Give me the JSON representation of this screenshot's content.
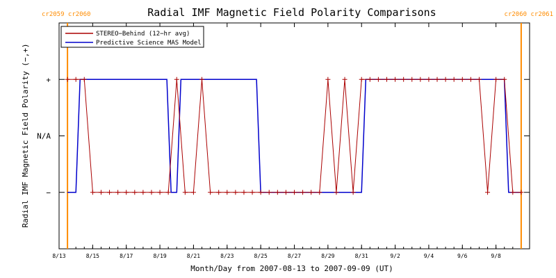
{
  "chart_data": {
    "type": "line",
    "title": "Radial IMF Magnetic Field Polarity Comparisons",
    "xlabel": "Month/Day from 2007-08-13 to 2007-09-09 (UT)",
    "ylabel": "Radial IMF Magnetic Field Polarity (−,+)",
    "xlim": [
      "2007-08-13",
      "2007-09-10"
    ],
    "ylim": [
      -2,
      2
    ],
    "x_tick_labels": [
      "8/13",
      "8/15",
      "8/17",
      "8/19",
      "8/21",
      "8/23",
      "8/25",
      "8/27",
      "8/29",
      "8/31",
      "9/2",
      "9/4",
      "9/6",
      "9/8"
    ],
    "x_tick_dates": [
      "2007-08-13",
      "2007-08-15",
      "2007-08-17",
      "2007-08-19",
      "2007-08-21",
      "2007-08-23",
      "2007-08-25",
      "2007-08-27",
      "2007-08-29",
      "2007-08-31",
      "2007-09-02",
      "2007-09-04",
      "2007-09-06",
      "2007-09-08"
    ],
    "y_tick_labels": [
      {
        "label": "+",
        "value": 1
      },
      {
        "label": "N/A",
        "value": 0
      },
      {
        "label": "−",
        "value": -1
      }
    ],
    "legend": {
      "position": "top-left",
      "entries": [
        {
          "label": "STEREO−Behind (12−hr avg)",
          "color": "#aa0000"
        },
        {
          "label": "Predictive Science MAS Model",
          "color": "#0000cc"
        }
      ]
    },
    "carrington_markers": [
      {
        "date": "2007-08-13 12:00",
        "label": "cr2059 cr2060",
        "side": "left"
      },
      {
        "date": "2007-09-09 12:00",
        "label": "cr2060 cr2061",
        "side": "right"
      }
    ],
    "series": [
      {
        "name": "STEREO−Behind (12−hr avg)",
        "color": "#aa0000",
        "markers": "plus",
        "x": [
          "2007-08-13 12:00",
          "2007-08-14 00:00",
          "2007-08-14 12:00",
          "2007-08-15 00:00",
          "2007-08-15 12:00",
          "2007-08-16 00:00",
          "2007-08-16 12:00",
          "2007-08-17 00:00",
          "2007-08-17 12:00",
          "2007-08-18 00:00",
          "2007-08-18 12:00",
          "2007-08-19 00:00",
          "2007-08-19 12:00",
          "2007-08-20 00:00",
          "2007-08-20 12:00",
          "2007-08-21 00:00",
          "2007-08-21 12:00",
          "2007-08-22 00:00",
          "2007-08-22 12:00",
          "2007-08-23 00:00",
          "2007-08-23 12:00",
          "2007-08-24 00:00",
          "2007-08-24 12:00",
          "2007-08-25 00:00",
          "2007-08-25 12:00",
          "2007-08-26 00:00",
          "2007-08-26 12:00",
          "2007-08-27 00:00",
          "2007-08-27 12:00",
          "2007-08-28 00:00",
          "2007-08-28 12:00",
          "2007-08-29 00:00",
          "2007-08-29 12:00",
          "2007-08-30 00:00",
          "2007-08-30 12:00",
          "2007-08-31 00:00",
          "2007-08-31 12:00",
          "2007-09-01 00:00",
          "2007-09-01 12:00",
          "2007-09-02 00:00",
          "2007-09-02 12:00",
          "2007-09-03 00:00",
          "2007-09-03 12:00",
          "2007-09-04 00:00",
          "2007-09-04 12:00",
          "2007-09-05 00:00",
          "2007-09-05 12:00",
          "2007-09-06 00:00",
          "2007-09-06 12:00",
          "2007-09-07 00:00",
          "2007-09-07 12:00",
          "2007-09-08 00:00",
          "2007-09-08 12:00",
          "2007-09-09 00:00",
          "2007-09-09 12:00"
        ],
        "y": [
          1,
          1,
          1,
          -1,
          -1,
          -1,
          -1,
          -1,
          -1,
          -1,
          -1,
          -1,
          -1,
          1,
          -1,
          -1,
          1,
          -1,
          -1,
          -1,
          -1,
          -1,
          -1,
          -1,
          -1,
          -1,
          -1,
          -1,
          -1,
          -1,
          -1,
          1,
          -1,
          1,
          -1,
          1,
          1,
          1,
          1,
          1,
          1,
          1,
          1,
          1,
          1,
          1,
          1,
          1,
          1,
          1,
          -1,
          1,
          1,
          -1,
          -1
        ]
      },
      {
        "name": "Predictive Science MAS Model",
        "color": "#0000cc",
        "markers": "none",
        "x": [
          "2007-08-13 12:00",
          "2007-08-14 00:00",
          "2007-08-14 06:00",
          "2007-08-19 10:00",
          "2007-08-19 16:00",
          "2007-08-20 00:00",
          "2007-08-20 06:00",
          "2007-08-24 18:00",
          "2007-08-25 00:00",
          "2007-08-31 00:00",
          "2007-08-31 06:00",
          "2007-09-08 12:00",
          "2007-09-08 18:00",
          "2007-09-09 12:00"
        ],
        "y": [
          -1,
          -1,
          1,
          1,
          -1,
          -1,
          1,
          1,
          -1,
          -1,
          1,
          1,
          -1,
          -1
        ]
      }
    ]
  }
}
